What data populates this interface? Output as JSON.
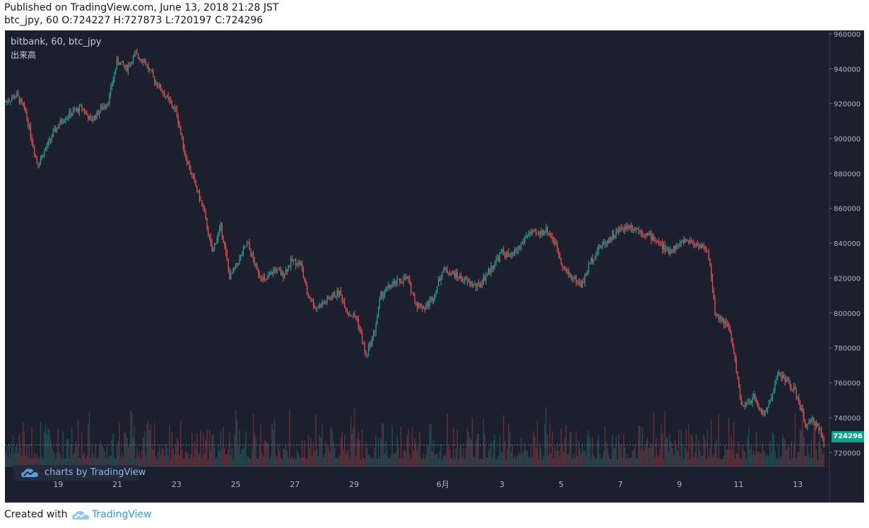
{
  "header": {
    "line1": "Published on TradingView.com, June 13, 2018 21:28 JST",
    "line2": "btc_jpy, 60 O:724227 H:727873 L:720197 C:724296"
  },
  "chart_overlay": {
    "symbol": "bitbank, 60, btc_jpy",
    "indicator": "出来高",
    "watermark": "charts by TradingView"
  },
  "footer": {
    "created_with": "Created with",
    "brand": "TradingView"
  },
  "colors": {
    "up": "#26a69a",
    "down": "#ef5350",
    "background": "#1b1f2e"
  },
  "chart_data": {
    "type": "candlestick",
    "symbol": "btc_jpy",
    "exchange": "bitbank",
    "interval": "60",
    "ohlc_last": {
      "open": 724227,
      "high": 727873,
      "low": 720197,
      "close": 724296
    },
    "last_price_label": "724296",
    "ylim": [
      712000,
      962000
    ],
    "y_ticks": [
      960000,
      940000,
      920000,
      900000,
      880000,
      860000,
      840000,
      820000,
      800000,
      780000,
      760000,
      740000,
      720000
    ],
    "x_ticks": [
      {
        "label": "19",
        "day": 19
      },
      {
        "label": "21",
        "day": 21
      },
      {
        "label": "23",
        "day": 23
      },
      {
        "label": "25",
        "day": 25
      },
      {
        "label": "27",
        "day": 27
      },
      {
        "label": "29",
        "day": 29
      },
      {
        "label": "6月",
        "day": 32
      },
      {
        "label": "3",
        "day": 34
      },
      {
        "label": "5",
        "day": 36
      },
      {
        "label": "7",
        "day": 38
      },
      {
        "label": "9",
        "day": 40
      },
      {
        "label": "11",
        "day": 42
      },
      {
        "label": "13",
        "day": 44
      }
    ],
    "xlim": [
      17.2,
      44.9
    ],
    "price_path": [
      [
        17.2,
        921000
      ],
      [
        17.6,
        925000
      ],
      [
        17.9,
        915000
      ],
      [
        18.1,
        900000
      ],
      [
        18.3,
        885000
      ],
      [
        18.6,
        895000
      ],
      [
        18.9,
        905000
      ],
      [
        19.2,
        912000
      ],
      [
        19.5,
        915000
      ],
      [
        19.8,
        918000
      ],
      [
        20.1,
        910000
      ],
      [
        20.4,
        916000
      ],
      [
        20.7,
        922000
      ],
      [
        21.0,
        945000
      ],
      [
        21.3,
        940000
      ],
      [
        21.6,
        948000
      ],
      [
        21.9,
        945000
      ],
      [
        22.2,
        935000
      ],
      [
        22.6,
        925000
      ],
      [
        23.0,
        915000
      ],
      [
        23.3,
        890000
      ],
      [
        23.6,
        875000
      ],
      [
        23.9,
        860000
      ],
      [
        24.2,
        835000
      ],
      [
        24.5,
        850000
      ],
      [
        24.8,
        820000
      ],
      [
        25.1,
        830000
      ],
      [
        25.4,
        840000
      ],
      [
        25.7,
        825000
      ],
      [
        26.0,
        818000
      ],
      [
        26.3,
        825000
      ],
      [
        26.6,
        822000
      ],
      [
        26.9,
        830000
      ],
      [
        27.2,
        828000
      ],
      [
        27.4,
        812000
      ],
      [
        27.7,
        803000
      ],
      [
        28.0,
        806000
      ],
      [
        28.3,
        810000
      ],
      [
        28.5,
        812000
      ],
      [
        28.8,
        800000
      ],
      [
        29.1,
        797000
      ],
      [
        29.4,
        775000
      ],
      [
        29.7,
        790000
      ],
      [
        29.9,
        810000
      ],
      [
        30.2,
        815000
      ],
      [
        30.5,
        818000
      ],
      [
        30.8,
        820000
      ],
      [
        31.1,
        805000
      ],
      [
        31.4,
        803000
      ],
      [
        31.7,
        810000
      ],
      [
        32.0,
        825000
      ],
      [
        32.4,
        822000
      ],
      [
        32.8,
        818000
      ],
      [
        33.2,
        815000
      ],
      [
        33.6,
        825000
      ],
      [
        34.0,
        835000
      ],
      [
        34.3,
        832000
      ],
      [
        34.6,
        838000
      ],
      [
        34.9,
        846000
      ],
      [
        35.2,
        845000
      ],
      [
        35.5,
        848000
      ],
      [
        35.8,
        840000
      ],
      [
        36.1,
        825000
      ],
      [
        36.4,
        820000
      ],
      [
        36.7,
        816000
      ],
      [
        37.0,
        830000
      ],
      [
        37.3,
        838000
      ],
      [
        37.6,
        842000
      ],
      [
        38.0,
        848000
      ],
      [
        38.3,
        850000
      ],
      [
        38.6,
        848000
      ],
      [
        38.9,
        845000
      ],
      [
        39.2,
        842000
      ],
      [
        39.6,
        835000
      ],
      [
        39.9,
        838000
      ],
      [
        40.2,
        842000
      ],
      [
        40.5,
        840000
      ],
      [
        40.8,
        838000
      ],
      [
        41.0,
        832000
      ],
      [
        41.2,
        800000
      ],
      [
        41.5,
        795000
      ],
      [
        41.7,
        790000
      ],
      [
        41.9,
        770000
      ],
      [
        42.1,
        745000
      ],
      [
        42.3,
        748000
      ],
      [
        42.5,
        752000
      ],
      [
        42.7,
        745000
      ],
      [
        42.9,
        742000
      ],
      [
        43.1,
        752000
      ],
      [
        43.3,
        765000
      ],
      [
        43.6,
        762000
      ],
      [
        43.9,
        755000
      ],
      [
        44.1,
        745000
      ],
      [
        44.3,
        735000
      ],
      [
        44.5,
        738000
      ],
      [
        44.7,
        735000
      ],
      [
        44.9,
        724296
      ]
    ]
  }
}
